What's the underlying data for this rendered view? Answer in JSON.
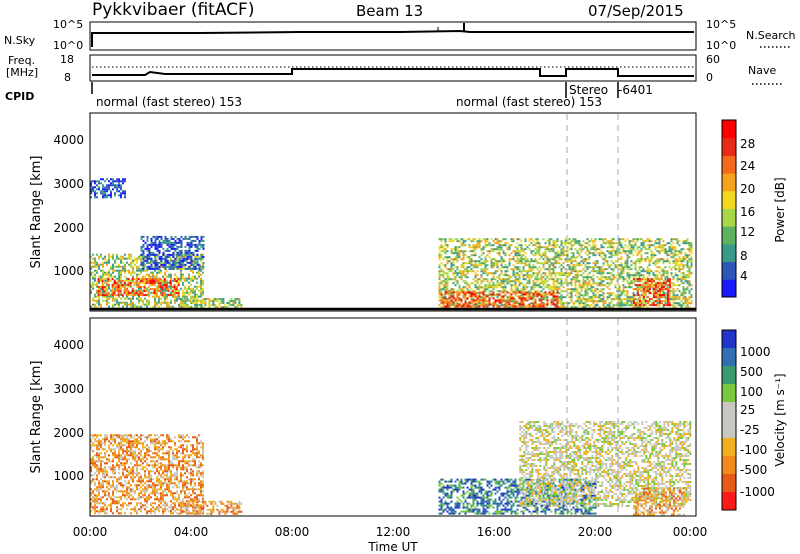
{
  "header": {
    "radar": "Pykkvibaer (fitACF)",
    "beam": "Beam 13",
    "date": "07/Sep/2015"
  },
  "panels": {
    "nsky": {
      "left_label": "N.Sky",
      "left_ticks": [
        "10^5",
        "10^0"
      ],
      "right_label": "N.Search",
      "right_ticks": [
        "10^5",
        "10^0"
      ]
    },
    "freq": {
      "left_label_1": "Freq.",
      "left_label_2": "[MHz]",
      "left_ticks": [
        "18",
        "8"
      ],
      "right_label": "Nave",
      "right_ticks": [
        "60",
        "0"
      ]
    },
    "cpid": {
      "label": "CPID",
      "annotations": [
        "normal (fast stereo) 153",
        "normal (fast stereo) 153",
        "Stereo",
        "-6401"
      ]
    }
  },
  "axes": {
    "ylabel": "Slant Range [km]",
    "y_ticks": [
      "1000",
      "2000",
      "3000",
      "4000"
    ],
    "x_ticks": [
      "00:00",
      "04:00",
      "08:00",
      "12:00",
      "16:00",
      "20:00",
      "00:00"
    ],
    "xlabel": "Time UT"
  },
  "colorbars": {
    "power": {
      "label": "Power [dB]",
      "ticks": [
        "4",
        "8",
        "12",
        "16",
        "20",
        "24",
        "28"
      ],
      "colors": [
        "#1a1aff",
        "#2e55b8",
        "#3a9a8a",
        "#5fb35f",
        "#a8d84a",
        "#f0d820",
        "#f7a21c",
        "#f26a1b",
        "#e82a18",
        "#ff0000"
      ]
    },
    "velocity": {
      "label": "Velocity [m s⁻¹]",
      "ticks": [
        "1000",
        "500",
        "100",
        "25",
        "-25",
        "-100",
        "-500",
        "-1000"
      ],
      "colors": [
        "#2035c8",
        "#3070b0",
        "#3a9a70",
        "#7ac840",
        "#c8c8c0",
        "#c8c8c0",
        "#f0b020",
        "#f08a1a",
        "#e85a18",
        "#ff1a1a"
      ]
    }
  },
  "chart_data": [
    {
      "type": "heatmap",
      "title": "Power",
      "xlabel": "Time UT",
      "ylabel": "Slant Range [km]",
      "xlim": [
        0,
        24
      ],
      "ylim": [
        180,
        4600
      ],
      "colorbar_label": "Power [dB]",
      "colorbar_range": [
        0,
        30
      ],
      "regions": [
        {
          "t": [
            0.0,
            4.5
          ],
          "r": [
            200,
            1450
          ],
          "level": "medium"
        },
        {
          "t": [
            0.3,
            3.5
          ],
          "r": [
            500,
            900
          ],
          "level": "high"
        },
        {
          "t": [
            0.0,
            1.4
          ],
          "r": [
            2700,
            3150
          ],
          "level": "low"
        },
        {
          "t": [
            2.0,
            4.5
          ],
          "r": [
            1100,
            1850
          ],
          "level": "low"
        },
        {
          "t": [
            3.5,
            6.0
          ],
          "r": [
            200,
            450
          ],
          "level": "medium"
        },
        {
          "t": [
            13.8,
            23.8
          ],
          "r": [
            200,
            1800
          ],
          "level": "medium"
        },
        {
          "t": [
            13.8,
            18.5
          ],
          "r": [
            250,
            600
          ],
          "level": "high"
        },
        {
          "t": [
            21.5,
            23.0
          ],
          "r": [
            300,
            900
          ],
          "level": "high"
        }
      ]
    },
    {
      "type": "heatmap",
      "title": "Velocity",
      "xlabel": "Time UT",
      "ylabel": "Slant Range [km]",
      "xlim": [
        0,
        24
      ],
      "ylim": [
        180,
        4600
      ],
      "colorbar_label": "Velocity [m s⁻¹]",
      "colorbar_range": [
        -1000,
        1000
      ],
      "regions": [
        {
          "t": [
            0.0,
            4.5
          ],
          "r": [
            200,
            2000
          ],
          "level": "negative"
        },
        {
          "t": [
            3.5,
            6.0
          ],
          "r": [
            200,
            500
          ],
          "level": "negative"
        },
        {
          "t": [
            13.8,
            20.0
          ],
          "r": [
            200,
            1000
          ],
          "level": "positive"
        },
        {
          "t": [
            17.0,
            23.8
          ],
          "r": [
            400,
            2300
          ],
          "level": "near-zero"
        },
        {
          "t": [
            21.5,
            23.5
          ],
          "r": [
            200,
            800
          ],
          "level": "negative"
        }
      ]
    }
  ]
}
